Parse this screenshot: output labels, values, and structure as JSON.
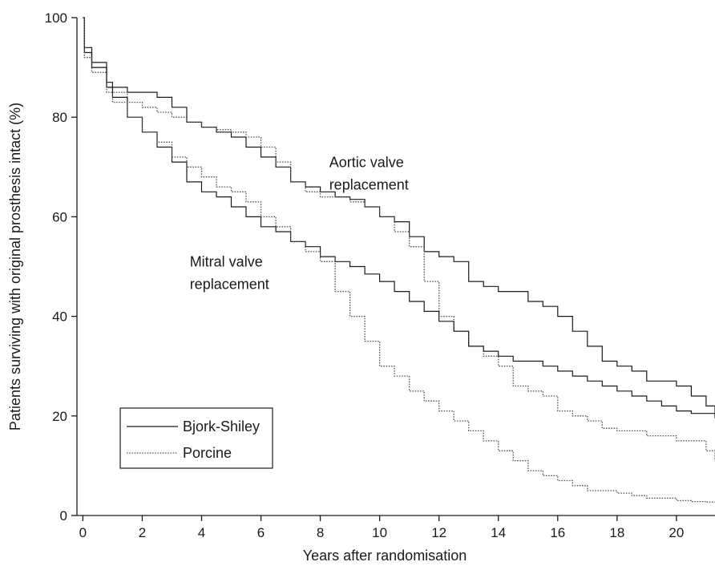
{
  "chart_data": {
    "type": "line",
    "title": "",
    "xlabel": "Years after randomisation",
    "ylabel": "Patients surviving with original prosthesis intact (%)",
    "xlim": [
      -0.2,
      21.3
    ],
    "ylim": [
      0,
      100
    ],
    "xticks": [
      0,
      2,
      4,
      6,
      8,
      10,
      12,
      14,
      16,
      18,
      20
    ],
    "yticks": [
      0,
      20,
      40,
      60,
      80,
      100
    ],
    "grid": false,
    "legend_position": "bottom-left",
    "legend": [
      {
        "label": "Bjork-Shiley",
        "style": "solid",
        "color": "#1a1a1a"
      },
      {
        "label": "Porcine",
        "style": "dotted",
        "color": "#555555"
      }
    ],
    "annotations": [
      {
        "lines": [
          "Aortic valve",
          "replacement"
        ],
        "x": 8.3,
        "y": 70
      },
      {
        "lines": [
          "Mitral valve",
          "replacement"
        ],
        "x": 3.6,
        "y": 50
      }
    ],
    "series": [
      {
        "group": "Aortic valve replacement",
        "type": "Bjork-Shiley",
        "style": "solid",
        "points": [
          [
            0,
            100
          ],
          [
            0.05,
            94
          ],
          [
            0.3,
            91
          ],
          [
            0.8,
            87
          ],
          [
            1,
            86
          ],
          [
            1.5,
            85
          ],
          [
            2,
            85
          ],
          [
            2.5,
            84
          ],
          [
            3,
            82
          ],
          [
            3.5,
            79
          ],
          [
            4,
            78
          ],
          [
            4.5,
            77
          ],
          [
            5,
            76
          ],
          [
            5.5,
            74
          ],
          [
            6,
            72
          ],
          [
            6.5,
            70
          ],
          [
            7,
            67
          ],
          [
            7.5,
            66
          ],
          [
            8,
            65
          ],
          [
            8.5,
            64
          ],
          [
            9,
            63.5
          ],
          [
            9.5,
            62
          ],
          [
            10,
            60
          ],
          [
            10.5,
            59
          ],
          [
            11,
            56
          ],
          [
            11.5,
            53
          ],
          [
            12,
            52
          ],
          [
            12.5,
            51
          ],
          [
            13,
            47
          ],
          [
            13.5,
            46
          ],
          [
            14,
            45
          ],
          [
            14.5,
            45
          ],
          [
            15,
            43
          ],
          [
            15.5,
            42
          ],
          [
            16,
            40
          ],
          [
            16.5,
            37
          ],
          [
            17,
            34
          ],
          [
            17.5,
            31
          ],
          [
            18,
            30
          ],
          [
            18.5,
            29
          ],
          [
            19,
            27
          ],
          [
            19.5,
            27
          ],
          [
            20,
            26
          ],
          [
            20.5,
            24
          ],
          [
            21,
            22
          ],
          [
            21.3,
            19.5
          ]
        ]
      },
      {
        "group": "Aortic valve replacement",
        "type": "Porcine",
        "style": "dotted",
        "points": [
          [
            0,
            100
          ],
          [
            0.05,
            93
          ],
          [
            0.3,
            90
          ],
          [
            0.8,
            86
          ],
          [
            1,
            85
          ],
          [
            1.5,
            83
          ],
          [
            2,
            82
          ],
          [
            2.5,
            81
          ],
          [
            3,
            80
          ],
          [
            3.5,
            79
          ],
          [
            4,
            78
          ],
          [
            4.5,
            77.5
          ],
          [
            5,
            77
          ],
          [
            5.5,
            76
          ],
          [
            6,
            74
          ],
          [
            6.5,
            71
          ],
          [
            7,
            67
          ],
          [
            7.5,
            65
          ],
          [
            8,
            64
          ],
          [
            8.5,
            64
          ],
          [
            9,
            63
          ],
          [
            9.5,
            62
          ],
          [
            10,
            60
          ],
          [
            10.5,
            57
          ],
          [
            11,
            54
          ],
          [
            11.5,
            47
          ],
          [
            12,
            40
          ],
          [
            12.5,
            37
          ],
          [
            13,
            34
          ],
          [
            13.5,
            32
          ],
          [
            14,
            30
          ],
          [
            14.5,
            26
          ],
          [
            15,
            25
          ],
          [
            15.5,
            24
          ],
          [
            16,
            21
          ],
          [
            16.5,
            20
          ],
          [
            17,
            19
          ],
          [
            17.5,
            17.5
          ],
          [
            18,
            17
          ],
          [
            18.5,
            17
          ],
          [
            19,
            16
          ],
          [
            19.5,
            16
          ],
          [
            20,
            15
          ],
          [
            20.5,
            15
          ],
          [
            21,
            13
          ],
          [
            21.3,
            11
          ]
        ]
      },
      {
        "group": "Mitral valve replacement",
        "type": "Bjork-Shiley",
        "style": "solid",
        "points": [
          [
            0,
            100
          ],
          [
            0.05,
            93
          ],
          [
            0.3,
            90
          ],
          [
            0.8,
            86
          ],
          [
            1,
            84
          ],
          [
            1.5,
            80
          ],
          [
            2,
            77
          ],
          [
            2.5,
            74
          ],
          [
            3,
            71
          ],
          [
            3.5,
            67
          ],
          [
            4,
            65
          ],
          [
            4.5,
            64
          ],
          [
            5,
            62
          ],
          [
            5.5,
            60
          ],
          [
            6,
            58
          ],
          [
            6.5,
            57
          ],
          [
            7,
            55
          ],
          [
            7.5,
            54
          ],
          [
            8,
            52
          ],
          [
            8.5,
            51
          ],
          [
            9,
            50
          ],
          [
            9.5,
            48.5
          ],
          [
            10,
            47
          ],
          [
            10.5,
            45
          ],
          [
            11,
            43
          ],
          [
            11.5,
            41
          ],
          [
            12,
            39
          ],
          [
            12.5,
            37
          ],
          [
            13,
            34
          ],
          [
            13.5,
            33
          ],
          [
            14,
            32
          ],
          [
            14.5,
            31
          ],
          [
            15,
            31
          ],
          [
            15.5,
            30
          ],
          [
            16,
            29
          ],
          [
            16.5,
            28
          ],
          [
            17,
            27
          ],
          [
            17.5,
            26
          ],
          [
            18,
            25
          ],
          [
            18.5,
            24
          ],
          [
            19,
            23
          ],
          [
            19.5,
            22
          ],
          [
            20,
            21
          ],
          [
            20.5,
            20.5
          ],
          [
            21,
            20.5
          ],
          [
            21.3,
            20
          ]
        ]
      },
      {
        "group": "Mitral valve replacement",
        "type": "Porcine",
        "style": "dotted",
        "points": [
          [
            0,
            100
          ],
          [
            0.05,
            92
          ],
          [
            0.3,
            89
          ],
          [
            0.8,
            85
          ],
          [
            1,
            83
          ],
          [
            1.5,
            80
          ],
          [
            2,
            77
          ],
          [
            2.5,
            75
          ],
          [
            3,
            72
          ],
          [
            3.5,
            70
          ],
          [
            4,
            68
          ],
          [
            4.5,
            66
          ],
          [
            5,
            65
          ],
          [
            5.5,
            63
          ],
          [
            6,
            60
          ],
          [
            6.5,
            58
          ],
          [
            7,
            55
          ],
          [
            7.5,
            53
          ],
          [
            8,
            51
          ],
          [
            8.5,
            45
          ],
          [
            9,
            40
          ],
          [
            9.5,
            35
          ],
          [
            10,
            30
          ],
          [
            10.5,
            28
          ],
          [
            11,
            25
          ],
          [
            11.5,
            23
          ],
          [
            12,
            21
          ],
          [
            12.5,
            19
          ],
          [
            13,
            17
          ],
          [
            13.5,
            15
          ],
          [
            14,
            13
          ],
          [
            14.5,
            11
          ],
          [
            15,
            9
          ],
          [
            15.5,
            8
          ],
          [
            16,
            7
          ],
          [
            16.5,
            6
          ],
          [
            17,
            5
          ],
          [
            17.5,
            5
          ],
          [
            18,
            4.5
          ],
          [
            18.5,
            4
          ],
          [
            19,
            3.5
          ],
          [
            19.5,
            3.5
          ],
          [
            20,
            3
          ],
          [
            20.5,
            2.8
          ],
          [
            21,
            2.7
          ],
          [
            21.3,
            2.7
          ]
        ]
      }
    ]
  }
}
